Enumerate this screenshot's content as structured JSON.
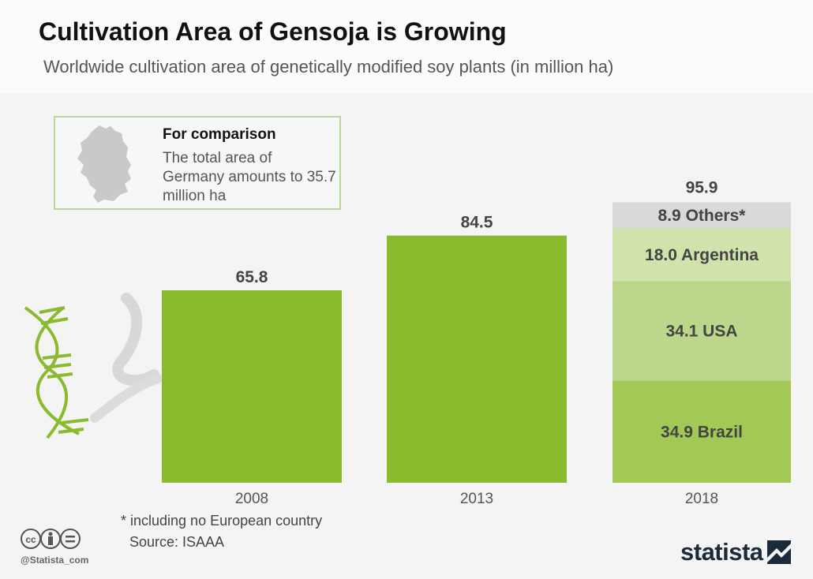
{
  "header": {
    "title": "Cultivation Area of Gensoja is Growing",
    "subtitle": "Worldwide cultivation area of genetically modified soy plants (in million ha)"
  },
  "comparison": {
    "title": "For comparison",
    "text": "The total area of Germany amounts to 35.7 million ha",
    "map_icon": "germany-map-icon"
  },
  "chart_data": {
    "type": "bar",
    "categories": [
      "2008",
      "2013",
      "2018"
    ],
    "values": [
      65.8,
      84.5,
      95.9
    ],
    "value_labels": [
      "65.8",
      "84.5",
      "95.9"
    ],
    "ylim": [
      0,
      100
    ],
    "stacked_2018": [
      {
        "name": "Brazil",
        "value": 34.9,
        "label": "34.9 Brazil",
        "color": "#a3c856"
      },
      {
        "name": "USA",
        "value": 34.1,
        "label": "34.1 USA",
        "color": "#bcd78b"
      },
      {
        "name": "Argentina",
        "value": 18.0,
        "label": "18.0 Argentina",
        "color": "#d1e3ac"
      },
      {
        "name": "Others",
        "value": 8.9,
        "label": "8.9 Others*",
        "color": "#d9d9d9"
      }
    ],
    "bar_color": "#8aba2d",
    "grid": false,
    "legend": "none"
  },
  "footer": {
    "footnote": "* including no European country",
    "source": "Source: ISAAA",
    "handle": "@Statista_com",
    "brand": "statista"
  }
}
